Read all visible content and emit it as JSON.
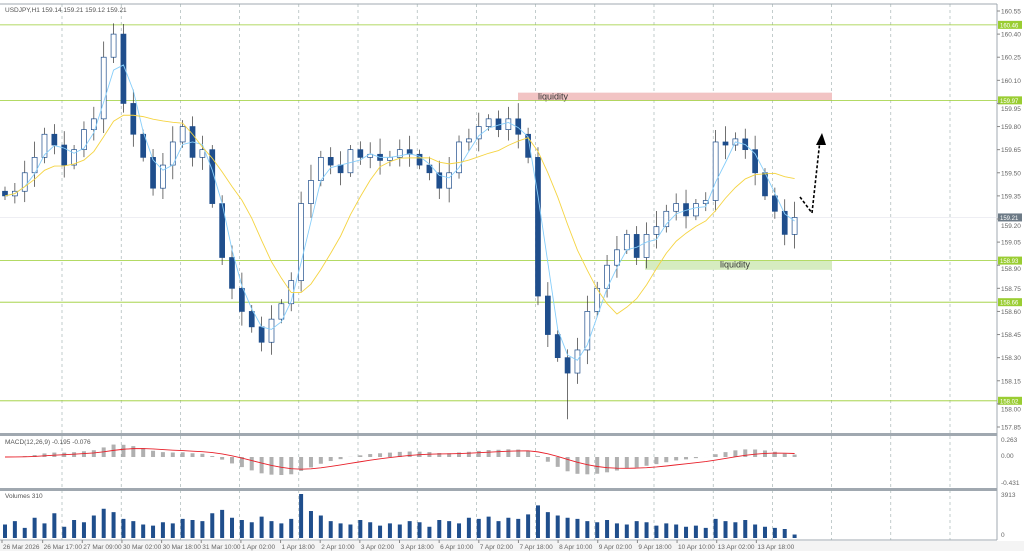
{
  "header": {
    "symbol": "USDJPY,H1",
    "ohlc": "159.14 159.21 159.12 159.21"
  },
  "colors": {
    "bull": "#1f4e8c",
    "bear": "#1f4e8c",
    "level": "#9acd32",
    "ma_fast": "#87cefa",
    "ma_slow": "#f5d442",
    "macd_signal": "#e8202a",
    "macd_hist": "#b0b0b0",
    "volume": "#1f4e8c",
    "liquidity_top": "#f2c4c4",
    "liquidity_bottom": "#d6ecc0"
  },
  "chart_data": [
    {
      "type": "candlestick",
      "title": "USDJPY,H1",
      "ylim": [
        157.8,
        160.6
      ],
      "y_ticks": [
        "160.55",
        "160.40",
        "160.25",
        "160.10",
        "159.95",
        "159.80",
        "159.65",
        "159.50",
        "159.35",
        "159.20",
        "159.05",
        "158.90",
        "158.75",
        "158.60",
        "158.45",
        "158.30",
        "158.15",
        "158.00",
        "157.85"
      ],
      "x_ticks": [
        "26 Mar 2026",
        "26 Mar 17:00",
        "27 Mar 09:00",
        "30 Mar 02:00",
        "30 Mar 18:00",
        "31 Mar 10:00",
        "1 Apr 02:00",
        "1 Apr 18:00",
        "2 Apr 10:00",
        "3 Apr 02:00",
        "3 Apr 18:00",
        "6 Apr 10:00",
        "7 Apr 02:00",
        "7 Apr 18:00",
        "8 Apr 10:00",
        "9 Apr 02:00",
        "9 Apr 18:00",
        "10 Apr 10:00",
        "13 Apr 02:00",
        "13 Apr 18:00"
      ],
      "closes": [
        159.35,
        159.38,
        159.5,
        159.6,
        159.75,
        159.68,
        159.55,
        159.65,
        159.78,
        159.85,
        160.25,
        160.4,
        159.95,
        159.75,
        159.6,
        159.4,
        159.55,
        159.7,
        159.8,
        159.6,
        159.65,
        159.3,
        158.95,
        158.75,
        158.6,
        158.5,
        158.4,
        158.55,
        158.65,
        158.8,
        159.3,
        159.45,
        159.6,
        159.55,
        159.5,
        159.65,
        159.6,
        159.62,
        159.58,
        159.6,
        159.65,
        159.62,
        159.55,
        159.5,
        159.4,
        159.5,
        159.7,
        159.72,
        159.8,
        159.85,
        159.78,
        159.85,
        159.75,
        159.6,
        158.7,
        158.45,
        158.3,
        158.2,
        158.35,
        158.6,
        158.75,
        158.9,
        159.0,
        159.1,
        158.95,
        159.1,
        159.15,
        159.25,
        159.3,
        159.22,
        159.3,
        159.32,
        159.7,
        159.68,
        159.72,
        159.65,
        159.5,
        159.35,
        159.25,
        159.1,
        159.21
      ],
      "levels": [
        {
          "price": 160.46,
          "label": "160.46"
        },
        {
          "price": 159.97,
          "label": "159.97"
        },
        {
          "price": 158.93,
          "label": "158.93"
        },
        {
          "price": 158.66,
          "label": "158.66"
        },
        {
          "price": 158.02,
          "label": "158.02"
        }
      ],
      "current_price": {
        "price": 159.21,
        "label": "159.21"
      },
      "zones": [
        {
          "label": "liquidity",
          "from": 159.97,
          "to": 160.02,
          "kind": "top"
        },
        {
          "label": "liquidity",
          "from": 158.87,
          "to": 158.93,
          "kind": "bottom"
        }
      ],
      "grid": true
    },
    {
      "type": "macd",
      "label": "MACD(12,26,9) -0.195 -0.076",
      "y_ticks": [
        "0.263",
        "0.00",
        "-0.431"
      ]
    },
    {
      "type": "bar",
      "label": "Volumes 310",
      "y_ticks": [
        "3913",
        "0"
      ],
      "values": [
        1200,
        1500,
        900,
        1800,
        1300,
        2200,
        1000,
        1600,
        1400,
        2000,
        2600,
        2300,
        1700,
        1500,
        1200,
        1100,
        1400,
        1300,
        1700,
        1600,
        1500,
        2200,
        2500,
        1800,
        1600,
        1400,
        1900,
        1500,
        1300,
        1700,
        3913,
        2400,
        2000,
        1500,
        1300,
        1200,
        1600,
        1400,
        1100,
        1300,
        1200,
        1500,
        1400,
        1000,
        1600,
        1500,
        1300,
        1800,
        1700,
        1900,
        1500,
        1800,
        1700,
        2100,
        2900,
        2300,
        2000,
        1800,
        1700,
        1500,
        1400,
        1600,
        1300,
        1200,
        1500,
        1400,
        1100,
        1300,
        1200,
        1000,
        1100,
        900,
        1700,
        1500,
        1400,
        1600,
        1200,
        1000,
        900,
        800,
        310
      ]
    }
  ]
}
